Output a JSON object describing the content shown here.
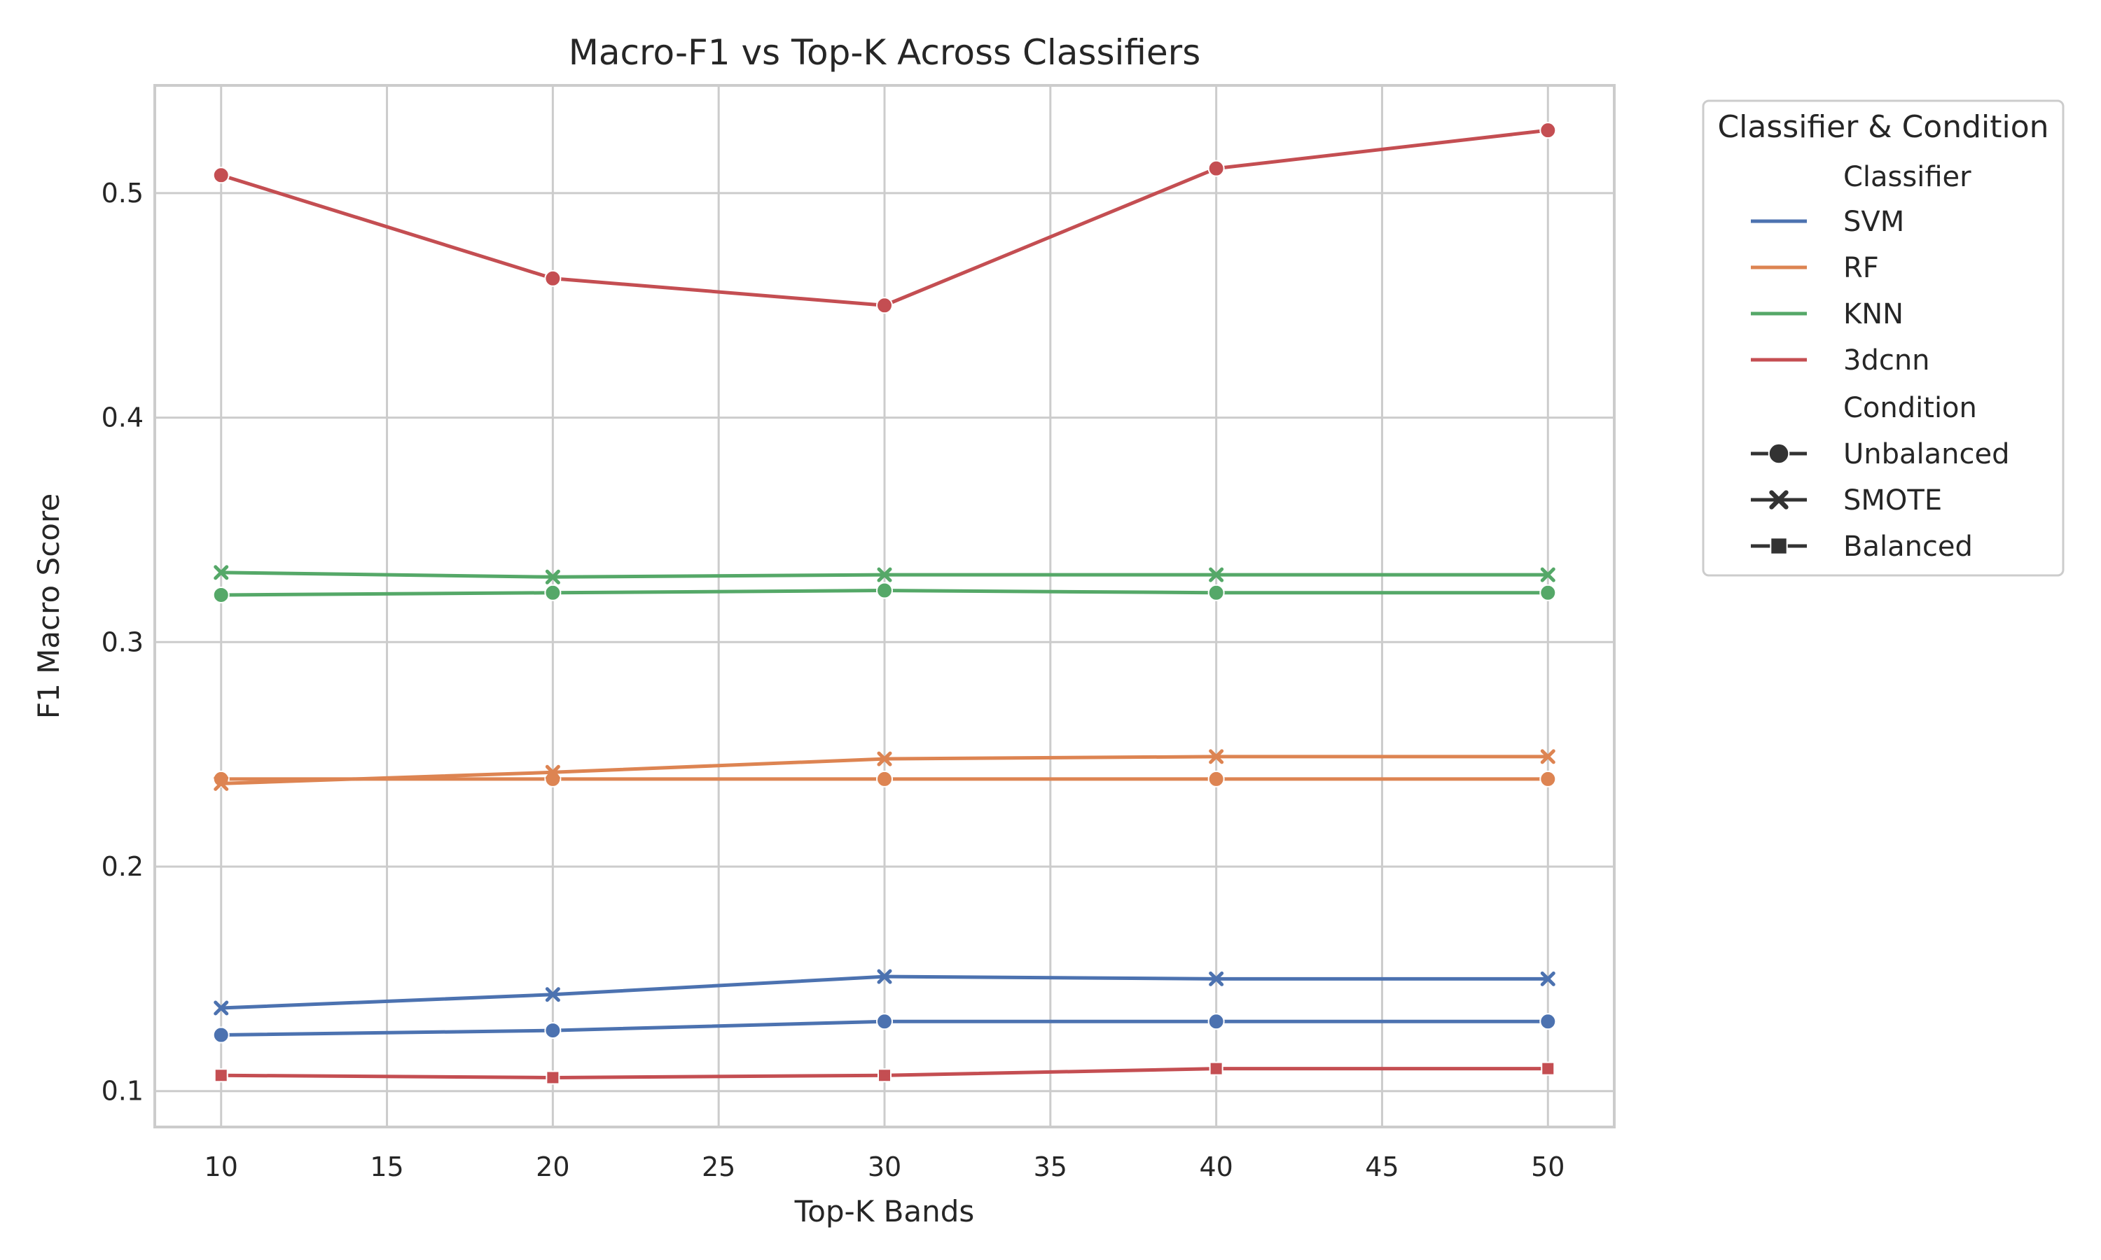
{
  "chart_data": {
    "type": "line",
    "title": "Macro-F1 vs Top-K Across Classifiers",
    "xlabel": "Top-K Bands",
    "ylabel": "F1 Macro Score",
    "x": [
      10,
      20,
      30,
      40,
      50
    ],
    "xlim": [
      8,
      52
    ],
    "ylim": [
      0.084,
      0.548
    ],
    "xticks": [
      10,
      15,
      20,
      25,
      30,
      35,
      40,
      45,
      50
    ],
    "yticks": [
      0.1,
      0.2,
      0.3,
      0.4,
      0.5
    ],
    "grid": true,
    "legend_position": "outside-right",
    "legend": {
      "title": "Classifier & Condition",
      "classifier_header": "Classifier",
      "condition_header": "Condition",
      "classifiers": [
        {
          "name": "SVM",
          "color": "#4c72b0"
        },
        {
          "name": "RF",
          "color": "#dd8452"
        },
        {
          "name": "KNN",
          "color": "#55a868"
        },
        {
          "name": "3dcnn",
          "color": "#c44e52"
        }
      ],
      "conditions": [
        {
          "name": "Unbalanced",
          "marker": "circle"
        },
        {
          "name": "SMOTE",
          "marker": "x"
        },
        {
          "name": "Balanced",
          "marker": "square"
        }
      ]
    },
    "series": [
      {
        "classifier": "SVM",
        "condition": "Unbalanced",
        "values": [
          0.125,
          0.127,
          0.131,
          0.131,
          0.131
        ]
      },
      {
        "classifier": "SVM",
        "condition": "SMOTE",
        "values": [
          0.137,
          0.143,
          0.151,
          0.15,
          0.15
        ]
      },
      {
        "classifier": "RF",
        "condition": "Unbalanced",
        "values": [
          0.239,
          0.239,
          0.239,
          0.239,
          0.239
        ]
      },
      {
        "classifier": "RF",
        "condition": "SMOTE",
        "values": [
          0.237,
          0.242,
          0.248,
          0.249,
          0.249
        ]
      },
      {
        "classifier": "KNN",
        "condition": "Unbalanced",
        "values": [
          0.321,
          0.322,
          0.323,
          0.322,
          0.322
        ]
      },
      {
        "classifier": "KNN",
        "condition": "SMOTE",
        "values": [
          0.331,
          0.329,
          0.33,
          0.33,
          0.33
        ]
      },
      {
        "classifier": "3dcnn",
        "condition": "Unbalanced",
        "values": [
          0.508,
          0.462,
          0.45,
          0.511,
          0.528
        ]
      },
      {
        "classifier": "3dcnn",
        "condition": "Balanced",
        "values": [
          0.107,
          0.106,
          0.107,
          0.11,
          0.11
        ]
      }
    ]
  }
}
